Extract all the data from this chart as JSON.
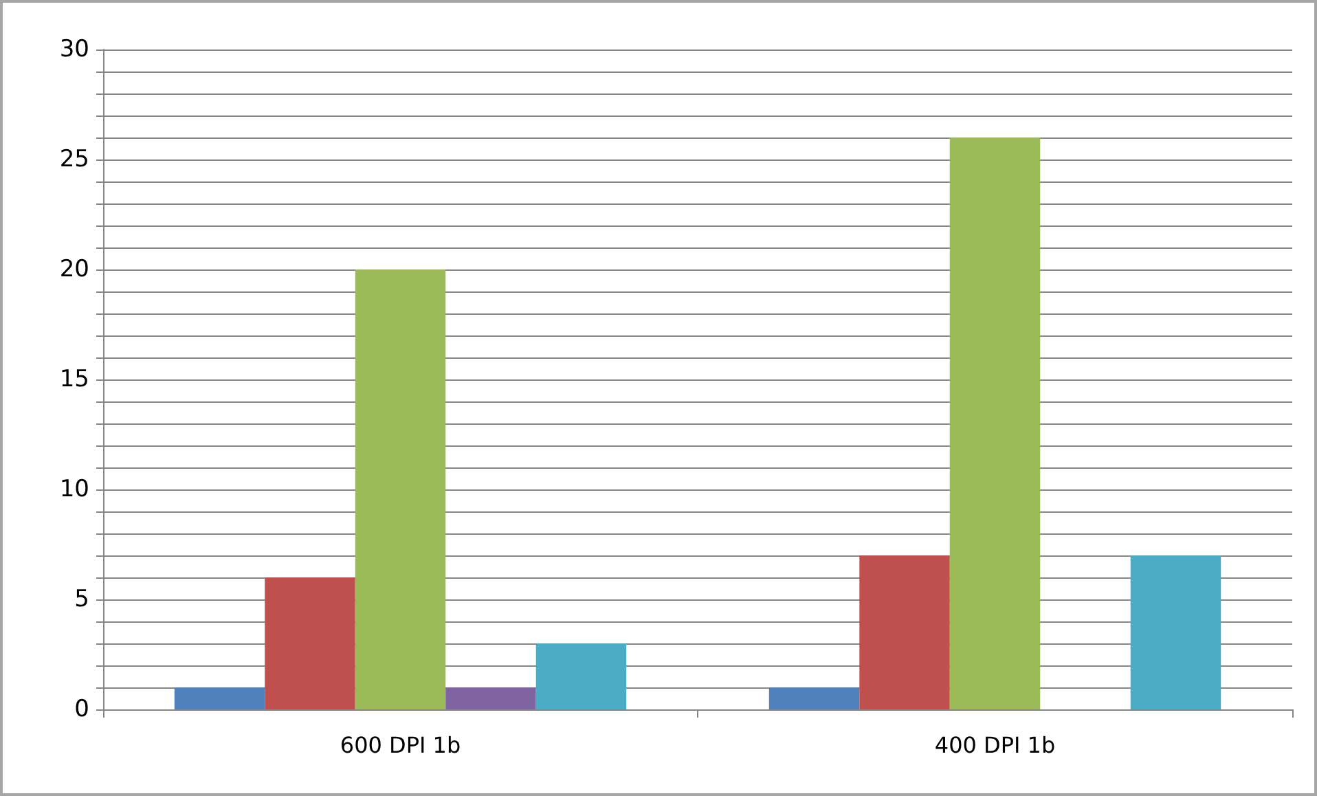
{
  "chart_data": {
    "type": "bar",
    "categories": [
      "600 DPI 1b",
      "400 DPI 1b"
    ],
    "series": [
      {
        "color": "#4f81bd",
        "values": [
          1,
          1
        ]
      },
      {
        "color": "#c0504d",
        "values": [
          6,
          7
        ]
      },
      {
        "color": "#9bbb59",
        "values": [
          20,
          26
        ]
      },
      {
        "color": "#8064a2",
        "values": [
          1,
          null
        ]
      },
      {
        "color": "#4bacc6",
        "values": [
          3,
          7
        ]
      }
    ],
    "ylim": [
      0,
      30
    ],
    "yticks": [
      0,
      {
        "value": 1,
        "label": null
      },
      {
        "value": 2,
        "label": null
      },
      {
        "value": 3,
        "label": null
      },
      {
        "value": 4,
        "label": null
      },
      5,
      {
        "value": 6,
        "label": null
      },
      {
        "value": 7,
        "label": null
      },
      {
        "value": 8,
        "label": null
      },
      {
        "value": 9,
        "label": null
      },
      10,
      {
        "value": 11,
        "label": null
      },
      {
        "value": 12,
        "label": null
      },
      {
        "value": 13,
        "label": null
      },
      {
        "value": 14,
        "label": null
      },
      15,
      {
        "value": 16,
        "label": null
      },
      {
        "value": 17,
        "label": null
      },
      {
        "value": 18,
        "label": null
      },
      {
        "value": 19,
        "label": null
      },
      20,
      {
        "value": 21,
        "label": null
      },
      {
        "value": 22,
        "label": null
      },
      {
        "value": 23,
        "label": null
      },
      {
        "value": 24,
        "label": null
      },
      25,
      {
        "value": 26,
        "label": null
      },
      {
        "value": 27,
        "label": null
      },
      {
        "value": 28,
        "label": null
      },
      {
        "value": 29,
        "label": null
      },
      30
    ],
    "grid": "y"
  }
}
